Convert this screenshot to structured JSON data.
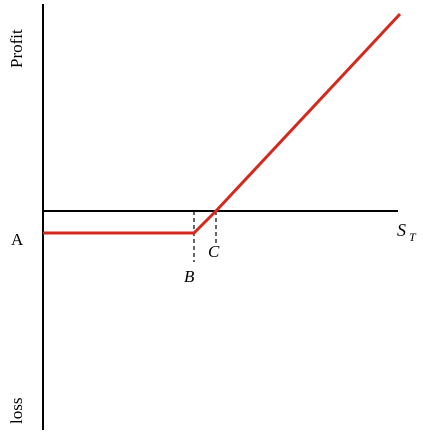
{
  "diagram": {
    "y_axis": {
      "top_label": "Profit",
      "bottom_label": "loss"
    },
    "x_axis": {
      "label": "S",
      "label_subscript": "T"
    },
    "points": {
      "a_label": "A",
      "b_label": "B",
      "c_label": "C"
    },
    "colors": {
      "payoff_line": "#d42a1e",
      "axes": "#000000",
      "background": "#ffffff"
    }
  }
}
